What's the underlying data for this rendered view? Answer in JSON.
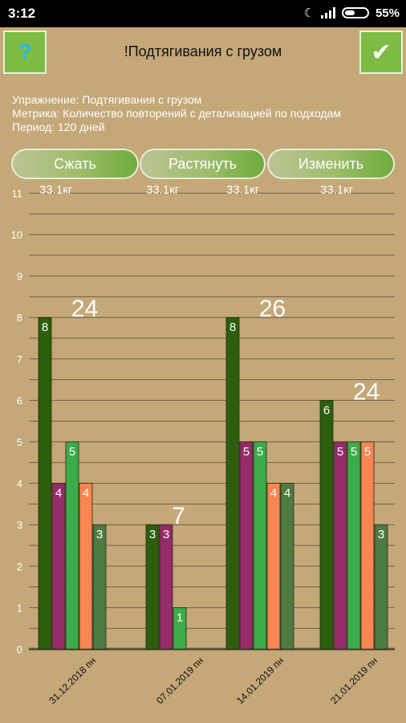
{
  "status_bar": {
    "time": "3:12",
    "battery": "55%",
    "icons": [
      "moon-icon",
      "signal-icon",
      "battery-icon"
    ]
  },
  "header": {
    "title": "!Подтягивания с грузом",
    "help_icon": "?",
    "confirm_icon": "✔"
  },
  "info": {
    "exercise": "Упражнение: Подтягивания с грузом",
    "metric": "Метрика: Количество повторений с детализацией по подходам",
    "period": "Период: 120 дней"
  },
  "buttons": {
    "compress": "Сжать",
    "stretch": "Растянуть",
    "edit": "Изменить"
  },
  "weights": [
    "33.1кг",
    "33.1кг",
    "33.1кг",
    "33.1кг"
  ],
  "colors": {
    "background": "#c4a878",
    "button": "#7cbc44",
    "set_colors": [
      "#2d5e0d",
      "#952b68",
      "#3cab49",
      "#f88552",
      "#4e7b40"
    ]
  },
  "chart_data": {
    "type": "bar",
    "categories": [
      "31.12.2018 пн",
      "07.01.2019 пн",
      "14.01.2019 пн",
      "21.01.2019 пн"
    ],
    "ylim": [
      0,
      11
    ],
    "yticks": [
      0,
      1,
      2,
      3,
      4,
      5,
      6,
      7,
      8,
      9,
      10,
      11
    ],
    "groups": [
      {
        "sets": [
          8,
          4,
          5,
          4,
          3
        ],
        "total": "24"
      },
      {
        "sets": [
          3,
          3,
          1
        ],
        "total": "7"
      },
      {
        "sets": [
          8,
          5,
          5,
          4,
          4
        ],
        "total": "26"
      },
      {
        "sets": [
          6,
          5,
          5,
          5,
          3
        ],
        "total": "24"
      }
    ]
  }
}
